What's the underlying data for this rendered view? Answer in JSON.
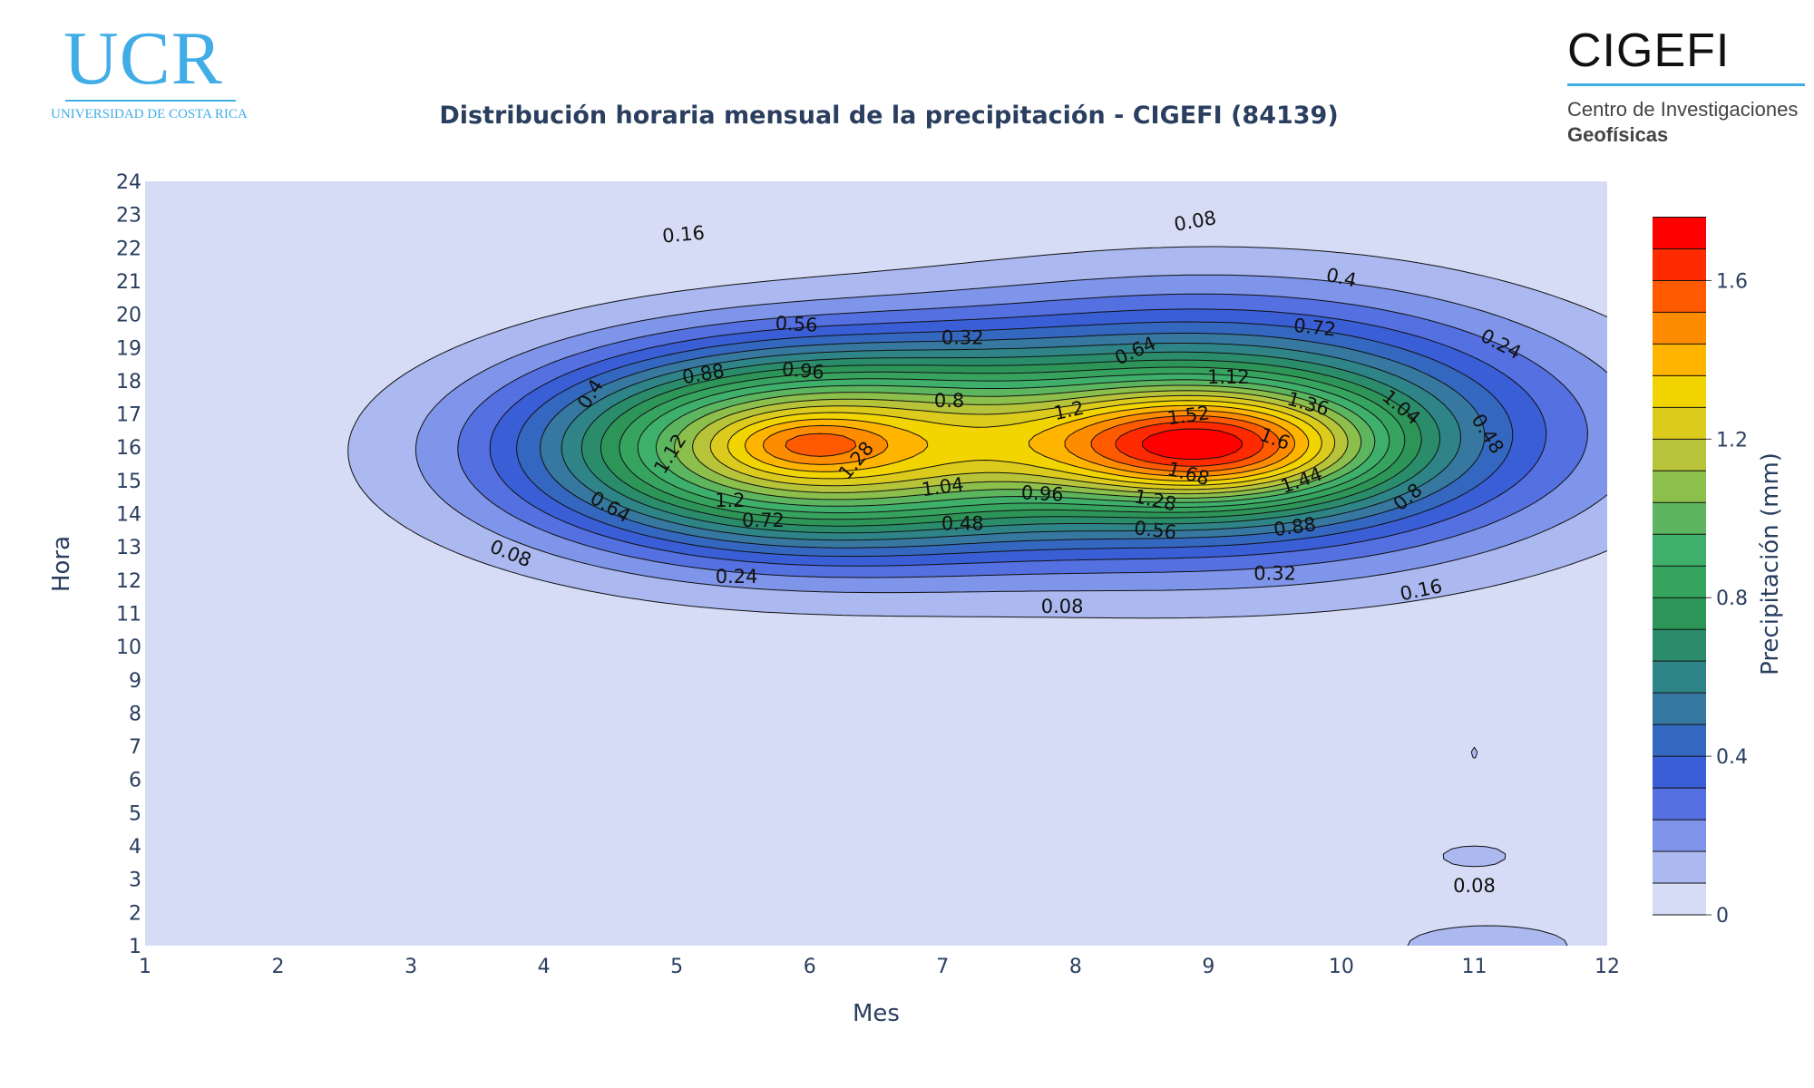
{
  "logos": {
    "ucr_text": "UCR",
    "ucr_subtitle": "UNIVERSIDAD DE COSTA RICA",
    "cigefi_text": "CIGEFI",
    "cigefi_line1": "Centro de Investigaciones",
    "cigefi_line2": "Geofísicas"
  },
  "colors": {
    "brand": "#41ade7",
    "plot_background": "#d6dcf5",
    "text": "#2a3f5f"
  },
  "chart_data": {
    "type": "contour",
    "title": "Distribución horaria mensual de la precipitación - CIGEFI (84139)",
    "xlabel": "Mes",
    "ylabel": "Hora",
    "colorbar_title": "Precipitación (mm)",
    "x_ticks": [
      1,
      2,
      3,
      4,
      5,
      6,
      7,
      8,
      9,
      10,
      11,
      12
    ],
    "y_ticks": [
      1,
      2,
      3,
      4,
      5,
      6,
      7,
      8,
      9,
      10,
      11,
      12,
      13,
      14,
      15,
      16,
      17,
      18,
      19,
      20,
      21,
      22,
      23,
      24
    ],
    "xlim": [
      1,
      12
    ],
    "ylim": [
      1,
      24
    ],
    "contour_interval": 0.08,
    "z_range": [
      0,
      1.8
    ],
    "colorbar_ticks": [
      "0",
      "0.4",
      "0.8",
      "1.2",
      "1.6"
    ],
    "level_colors": [
      "#d6dcf5",
      "#abb9f0",
      "#7f95ea",
      "#5570e0",
      "#3a5ed6",
      "#3468c0",
      "#3778a0",
      "#2f8487",
      "#2a8c6b",
      "#2e9558",
      "#36a35f",
      "#3fb06b",
      "#5db65f",
      "#8cbf4b",
      "#b7c43a",
      "#dccb1d",
      "#f2d400",
      "#ffb400",
      "#ff8c00",
      "#ff5a00",
      "#ff2a00",
      "#ff0000"
    ],
    "contour_labels": [
      "0.08",
      "0.16",
      "0.24",
      "0.32",
      "0.4",
      "0.48",
      "0.56",
      "0.64",
      "0.72",
      "0.8",
      "0.88",
      "0.96",
      "1.04",
      "1.12",
      "1.2",
      "1.28",
      "1.36",
      "1.44",
      "1.52",
      "1.6",
      "1.68"
    ],
    "peaks": [
      {
        "mes": 9,
        "hora": 16,
        "value": 1.8
      },
      {
        "mes": 6,
        "hora": 16.1,
        "value": 1.45
      },
      {
        "mes": 11,
        "hora": 6.8,
        "value": 0.09
      },
      {
        "mes": 11,
        "hora": 3.7,
        "value": 0.1
      }
    ]
  }
}
